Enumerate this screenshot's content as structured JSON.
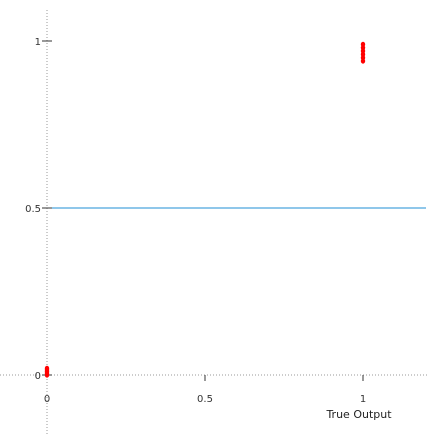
{
  "chart_data": {
    "type": "scatter",
    "xlabel": "True Output",
    "ylabel": "",
    "xlim": [
      0,
      1
    ],
    "ylim": [
      0,
      1
    ],
    "x_ticks": [
      {
        "value": 0,
        "label": "0"
      },
      {
        "value": 0.5,
        "label": "0.5"
      },
      {
        "value": 1,
        "label": "1"
      }
    ],
    "y_ticks": [
      {
        "value": 0,
        "label": "0"
      },
      {
        "value": 0.5,
        "label": "0.5"
      },
      {
        "value": 1,
        "label": "1"
      }
    ],
    "reference_line": {
      "y": 0.5,
      "color": "#1f8fd6"
    },
    "marker_color": "#ff0000",
    "series": [
      {
        "points": [
          {
            "x": 0,
            "y": 0.0
          },
          {
            "x": 0,
            "y": 0.005
          },
          {
            "x": 0,
            "y": 0.01
          },
          {
            "x": 0,
            "y": 0.015
          },
          {
            "x": 0,
            "y": 0.02
          },
          {
            "x": 1,
            "y": 0.94
          },
          {
            "x": 1,
            "y": 0.95
          },
          {
            "x": 1,
            "y": 0.96
          },
          {
            "x": 1,
            "y": 0.97
          },
          {
            "x": 1,
            "y": 0.98
          },
          {
            "x": 1,
            "y": 0.99
          }
        ]
      }
    ]
  }
}
